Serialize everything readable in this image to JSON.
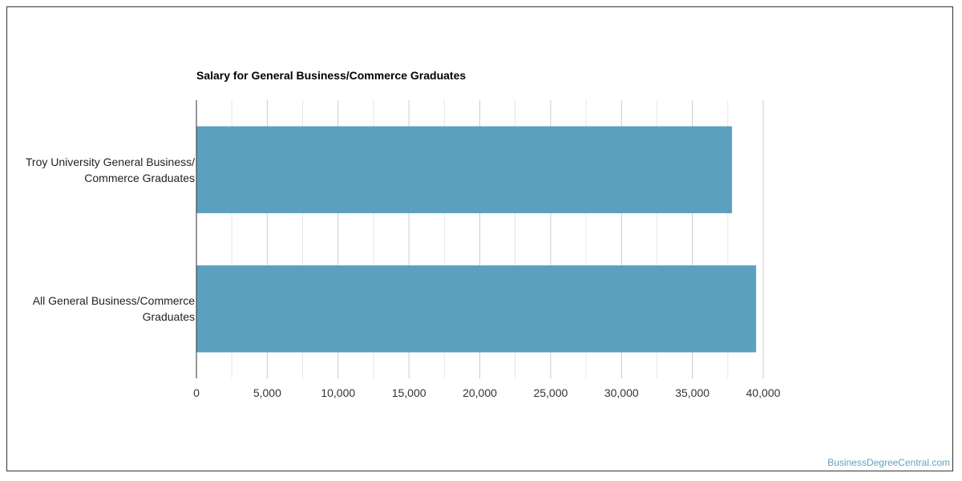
{
  "chart_data": {
    "type": "bar",
    "orientation": "horizontal",
    "title": "Salary for General Business/Commerce Graduates",
    "categories": [
      [
        "Troy University General Business/",
        "Commerce Graduates"
      ],
      [
        "All General Business/Commerce",
        "Graduates"
      ]
    ],
    "values": [
      37800,
      39500
    ],
    "xlim": [
      0,
      40000
    ],
    "x_ticks": [
      0,
      5000,
      10000,
      15000,
      20000,
      25000,
      30000,
      35000,
      40000
    ],
    "x_tick_labels": [
      "0",
      "5,000",
      "10,000",
      "15,000",
      "20,000",
      "25,000",
      "30,000",
      "35,000",
      "40,000"
    ],
    "grid": true,
    "bar_color": "#5ba1bf",
    "grid_color": "#cccccc",
    "minor_grid_color": "#e6e6e6"
  },
  "watermark": "BusinessDegreeCentral.com"
}
